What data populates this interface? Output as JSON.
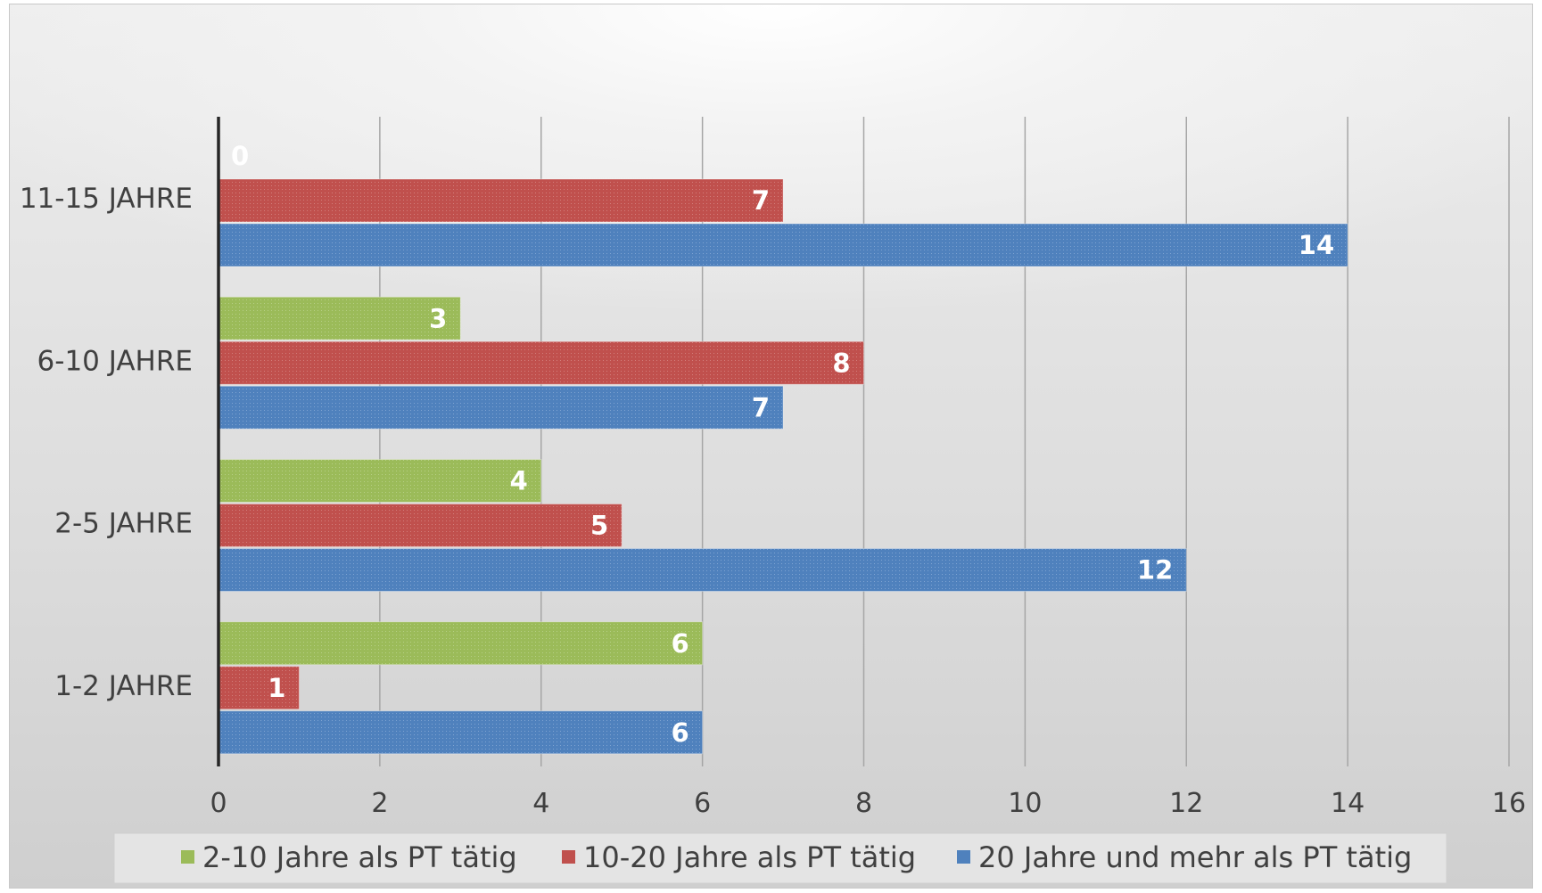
{
  "chart_data": {
    "type": "bar",
    "orientation": "horizontal",
    "categories": [
      "11-15 JAHRE",
      "6-10 JAHRE",
      "2-5 JAHRE",
      "1-2 JAHRE"
    ],
    "series": [
      {
        "name": "2-10 Jahre als PT tätig",
        "color": "#9bbb59",
        "values": [
          0,
          3,
          4,
          6
        ]
      },
      {
        "name": "10-20 Jahre als PT tätig",
        "color": "#c0504d",
        "values": [
          7,
          8,
          5,
          1
        ]
      },
      {
        "name": "20 Jahre und mehr als PT tätig",
        "color": "#4f81bd",
        "values": [
          14,
          7,
          12,
          6
        ]
      }
    ],
    "xlim": [
      0,
      16
    ],
    "x_ticks": [
      "0",
      "2",
      "4",
      "6",
      "8",
      "10",
      "12",
      "14",
      "16"
    ],
    "grid": "vertical",
    "data_labels": true,
    "legend_position": "bottom",
    "title": "",
    "xlabel": "",
    "ylabel": ""
  }
}
